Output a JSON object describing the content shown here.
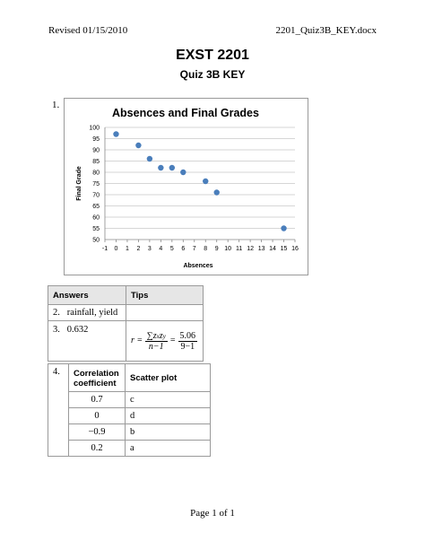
{
  "header": {
    "left": "Revised 01/15/2010",
    "right": "2201_Quiz3B_KEY.docx"
  },
  "title": {
    "main": "EXST 2201",
    "sub": "Quiz 3B KEY"
  },
  "q1": {
    "number": "1.",
    "chart_data": {
      "type": "scatter",
      "title": "Absences and Final Grades",
      "xlabel": "Absences",
      "ylabel": "Final Grade",
      "xlim": [
        -1,
        16
      ],
      "ylim": [
        50,
        100
      ],
      "xticks": [
        "-1",
        "0",
        "1",
        "2",
        "3",
        "4",
        "5",
        "6",
        "7",
        "8",
        "9",
        "10",
        "11",
        "12",
        "13",
        "14",
        "15",
        "16"
      ],
      "yticks": [
        "50",
        "55",
        "60",
        "65",
        "70",
        "75",
        "80",
        "85",
        "90",
        "95",
        "100"
      ],
      "grid": "horizontal",
      "points_color": "#4a7ebb",
      "x": [
        0,
        2,
        3,
        4,
        5,
        6,
        8,
        9,
        15
      ],
      "y": [
        97,
        92,
        86,
        82,
        82,
        80,
        76,
        71,
        55
      ]
    }
  },
  "answers_table": {
    "headers": [
      "Answers",
      "Tips"
    ],
    "rows": [
      {
        "num": "2.",
        "answer": "rainfall, yield"
      },
      {
        "num": "3.",
        "answer": "0.632"
      }
    ],
    "formula": {
      "lhs": "r =",
      "num": "∑z",
      "den": "n−1",
      "eq": "=",
      "num2": "5.06",
      "den2": "9−1"
    }
  },
  "corr_table": {
    "number": "4.",
    "headers": [
      "Correlation coefficient",
      "Scatter plot"
    ],
    "rows": [
      {
        "r": "0.7",
        "plot": "c"
      },
      {
        "r": "0",
        "plot": "d"
      },
      {
        "r": "−0.9",
        "plot": "b"
      },
      {
        "r": "0.2",
        "plot": "a"
      }
    ]
  },
  "footer": "Page 1 of 1"
}
